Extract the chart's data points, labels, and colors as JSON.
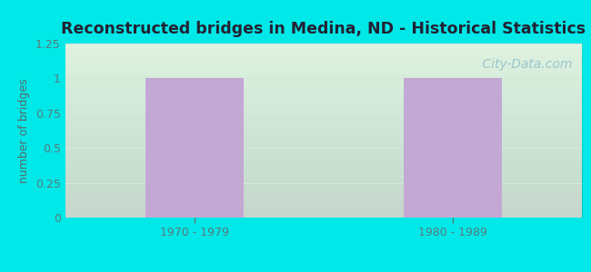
{
  "title": "Reconstructed bridges in Medina, ND - Historical Statistics",
  "categories": [
    "1970 - 1979",
    "1980 - 1989"
  ],
  "values": [
    1,
    1
  ],
  "bar_color": "#c4a8d4",
  "background_color": "#00e8e8",
  "ylabel": "number of bridges",
  "ylabel_color": "#5a6a6a",
  "tick_color": "#5a7a7a",
  "title_color": "#222233",
  "ylim": [
    0,
    1.25
  ],
  "yticks": [
    0,
    0.25,
    0.5,
    0.75,
    1,
    1.25
  ],
  "watermark": " City-Data.com",
  "watermark_color": "#90bfca",
  "grid_color": "#d8e8d8",
  "bar_width": 0.38,
  "plot_bg_top": "#ffffff",
  "plot_bg_bottom": "#d8ecd8"
}
